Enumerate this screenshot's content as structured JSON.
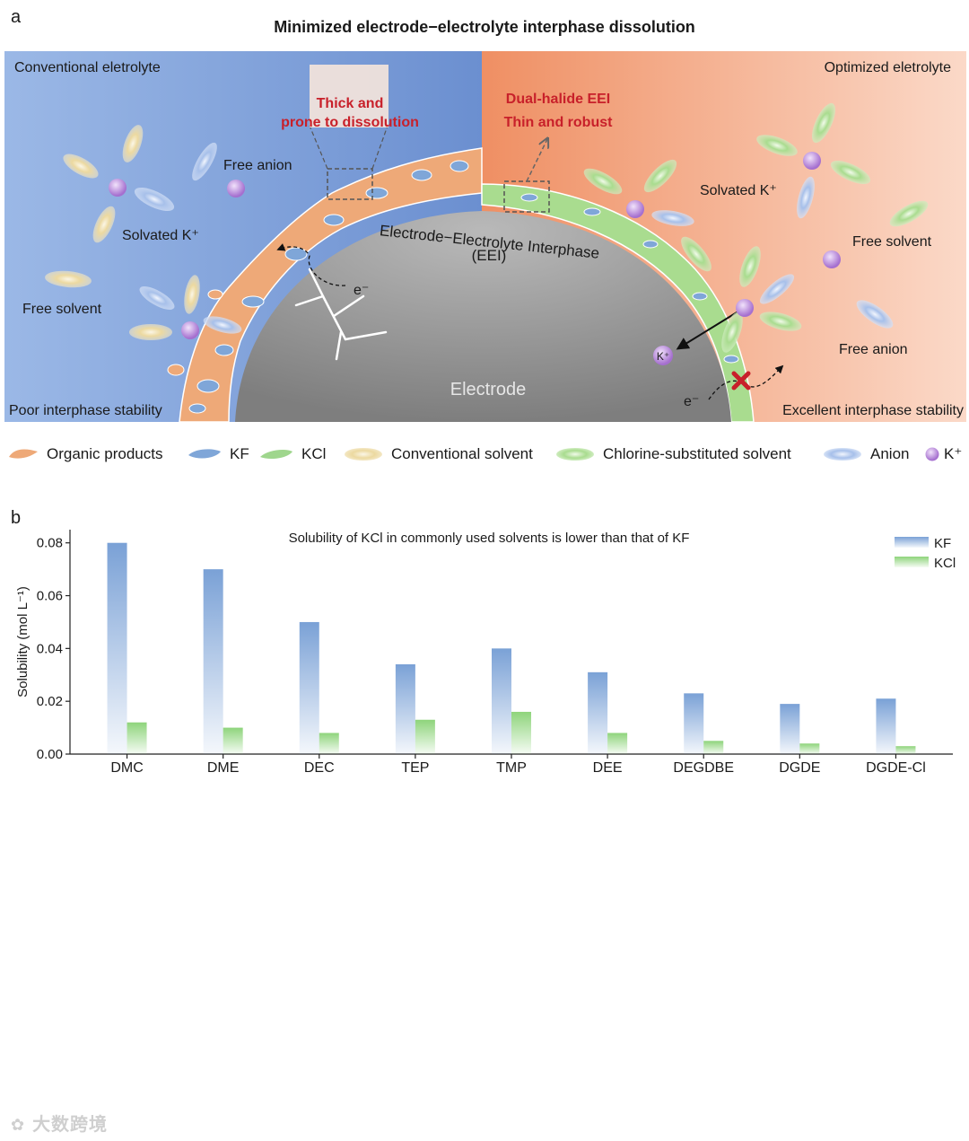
{
  "panel_a": {
    "label": "a",
    "title": "Minimized  electrode−electrolyte interphase dissolution",
    "left": {
      "heading": "Conventional eletrolyte",
      "free_anion": "Free anion",
      "solvated": "Solvated K⁺",
      "free_solvent": "Free solvent",
      "callout": [
        "Thick and",
        "prone to dissolution"
      ],
      "stability": "Poor interphase stability",
      "electron": "e⁻"
    },
    "right": {
      "heading": "Optimized eletrolyte",
      "callout": [
        "Dual-halide EEI",
        "Thin and robust"
      ],
      "solvated": "Solvated K⁺",
      "free_solvent": "Free solvent",
      "free_anion": "Free anion",
      "k_ion": "K⁺",
      "electron": "e⁻",
      "stability": "Excellent interphase stability"
    },
    "interphase_label": "Electrode−Electrolyte Interphase",
    "interphase_abbrev": "(EEI)",
    "electrode_label": "Electrode",
    "colors": {
      "left_bg": "#7d9fd6",
      "right_bg": "#f3a07c",
      "callout_red": "#c8202a",
      "electrode": "#9a9a9a"
    }
  },
  "legend": [
    {
      "icon": "organic-products-icon",
      "label": "Organic products",
      "color": "#eea978"
    },
    {
      "icon": "kf-icon",
      "label": "KF",
      "color": "#7fa6d8"
    },
    {
      "icon": "kcl-icon",
      "label": "KCl",
      "color": "#9fd68d"
    },
    {
      "icon": "conventional-solvent-icon",
      "label": "Conventional solvent",
      "color": "#e8d699"
    },
    {
      "icon": "chlorine-solvent-icon",
      "label": "Chlorine-substituted solvent",
      "color": "#b9e3a4"
    },
    {
      "icon": "anion-icon",
      "label": "Anion",
      "color": "#a9c2ea"
    },
    {
      "icon": "k-ion-icon",
      "label": "K⁺",
      "color": "#c79ae0"
    }
  ],
  "panel_b": {
    "label": "b"
  },
  "chart_data": {
    "type": "bar",
    "title": "Solubility of KCl in commonly used solvents is lower than that of KF",
    "xlabel": "",
    "ylabel": "Solubility (mol L⁻¹)",
    "ylim": [
      0,
      0.085
    ],
    "yticks": [
      "0.00",
      "0.02",
      "0.04",
      "0.06",
      "0.08"
    ],
    "categories": [
      "DMC",
      "DME",
      "DEC",
      "TEP",
      "TMP",
      "DEE",
      "DEGDBE",
      "DGDE",
      "DGDE-Cl"
    ],
    "series": [
      {
        "name": "KF",
        "color": "#7aa1d6",
        "values": [
          0.08,
          0.07,
          0.05,
          0.034,
          0.04,
          0.031,
          0.023,
          0.019,
          0.021
        ]
      },
      {
        "name": "KCl",
        "color": "#8ed47b",
        "values": [
          0.012,
          0.01,
          0.008,
          0.013,
          0.016,
          0.008,
          0.005,
          0.004,
          0.003
        ]
      }
    ],
    "legend_position": "top-right",
    "grid": false
  },
  "watermark": "大数跨境"
}
